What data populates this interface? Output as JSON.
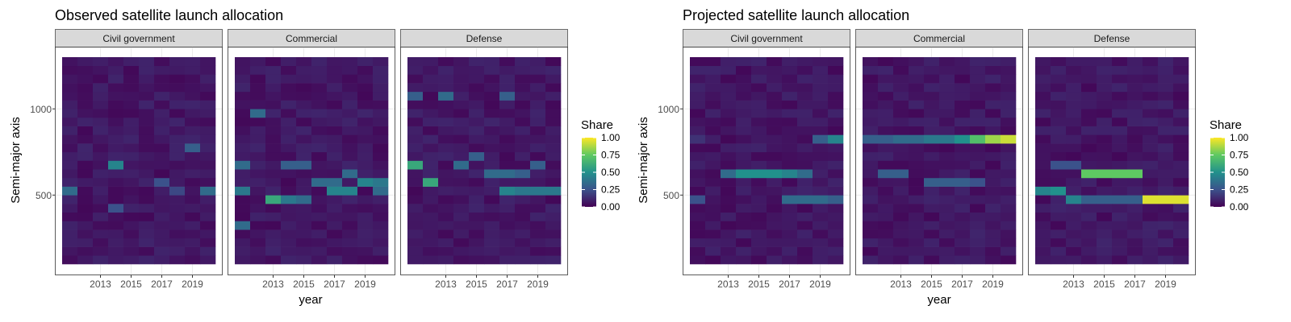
{
  "chart_data": [
    {
      "type": "heatmap",
      "title": "Observed satellite launch allocation",
      "xlabel": "year",
      "ylabel": "Semi-major axis",
      "x_range": [
        2011,
        2020
      ],
      "x_ticks": [
        "2013",
        "2015",
        "2017",
        "2019"
      ],
      "y_range": [
        100,
        1300
      ],
      "y_ticks": [
        "500",
        "1000"
      ],
      "legend": {
        "title": "Share",
        "ticks": [
          "1.00",
          "0.75",
          "0.50",
          "0.25",
          "0.00"
        ],
        "range": [
          0,
          1
        ]
      },
      "facets": [
        {
          "label": "Civil government",
          "highlights": [
            {
              "x": 2011,
              "y": 500,
              "v": 0.35
            },
            {
              "x": 2014,
              "y": 650,
              "v": 0.45
            },
            {
              "x": 2014,
              "y": 400,
              "v": 0.25
            },
            {
              "x": 2019,
              "y": 750,
              "v": 0.3
            },
            {
              "x": 2020,
              "y": 500,
              "v": 0.35
            },
            {
              "x": 2017,
              "y": 550,
              "v": 0.25
            },
            {
              "x": 2018,
              "y": 500,
              "v": 0.22
            }
          ]
        },
        {
          "label": "Commercial",
          "highlights": [
            {
              "x": 2012,
              "y": 950,
              "v": 0.35
            },
            {
              "x": 2011,
              "y": 650,
              "v": 0.35
            },
            {
              "x": 2011,
              "y": 500,
              "v": 0.4
            },
            {
              "x": 2011,
              "y": 300,
              "v": 0.35
            },
            {
              "x": 2013,
              "y": 450,
              "v": 0.6
            },
            {
              "x": 2014,
              "y": 450,
              "v": 0.4
            },
            {
              "x": 2015,
              "y": 450,
              "v": 0.35
            },
            {
              "x": 2014,
              "y": 650,
              "v": 0.3
            },
            {
              "x": 2015,
              "y": 650,
              "v": 0.3
            },
            {
              "x": 2016,
              "y": 550,
              "v": 0.35
            },
            {
              "x": 2017,
              "y": 550,
              "v": 0.35
            },
            {
              "x": 2017,
              "y": 500,
              "v": 0.45
            },
            {
              "x": 2018,
              "y": 500,
              "v": 0.45
            },
            {
              "x": 2018,
              "y": 600,
              "v": 0.35
            },
            {
              "x": 2019,
              "y": 550,
              "v": 0.45
            },
            {
              "x": 2020,
              "y": 550,
              "v": 0.4
            },
            {
              "x": 2020,
              "y": 500,
              "v": 0.35
            }
          ]
        },
        {
          "label": "Defense",
          "highlights": [
            {
              "x": 2011,
              "y": 1050,
              "v": 0.3
            },
            {
              "x": 2013,
              "y": 1050,
              "v": 0.35
            },
            {
              "x": 2017,
              "y": 1050,
              "v": 0.3
            },
            {
              "x": 2011,
              "y": 650,
              "v": 0.6
            },
            {
              "x": 2012,
              "y": 550,
              "v": 0.6
            },
            {
              "x": 2014,
              "y": 650,
              "v": 0.35
            },
            {
              "x": 2015,
              "y": 700,
              "v": 0.3
            },
            {
              "x": 2016,
              "y": 600,
              "v": 0.35
            },
            {
              "x": 2017,
              "y": 600,
              "v": 0.35
            },
            {
              "x": 2017,
              "y": 500,
              "v": 0.45
            },
            {
              "x": 2018,
              "y": 500,
              "v": 0.4
            },
            {
              "x": 2019,
              "y": 500,
              "v": 0.4
            },
            {
              "x": 2020,
              "y": 500,
              "v": 0.4
            },
            {
              "x": 2018,
              "y": 600,
              "v": 0.3
            },
            {
              "x": 2019,
              "y": 650,
              "v": 0.3
            }
          ]
        }
      ]
    },
    {
      "type": "heatmap",
      "title": "Projected satellite launch allocation",
      "xlabel": "year",
      "ylabel": "Semi-major axis",
      "x_range": [
        2011,
        2020
      ],
      "x_ticks": [
        "2013",
        "2015",
        "2017",
        "2019"
      ],
      "y_range": [
        100,
        1300
      ],
      "y_ticks": [
        "500",
        "1000"
      ],
      "legend": {
        "title": "Share",
        "ticks": [
          "1.00",
          "0.75",
          "0.50",
          "0.25",
          "0.00"
        ],
        "range": [
          0,
          1
        ]
      },
      "facets": [
        {
          "label": "Civil government",
          "highlights": [
            {
              "x": 2019,
              "y": 800,
              "v": 0.3
            },
            {
              "x": 2020,
              "y": 800,
              "v": 0.45
            },
            {
              "x": 2013,
              "y": 600,
              "v": 0.35
            },
            {
              "x": 2014,
              "y": 600,
              "v": 0.5
            },
            {
              "x": 2015,
              "y": 600,
              "v": 0.5
            },
            {
              "x": 2016,
              "y": 600,
              "v": 0.5
            },
            {
              "x": 2017,
              "y": 600,
              "v": 0.45
            },
            {
              "x": 2018,
              "y": 600,
              "v": 0.35
            },
            {
              "x": 2017,
              "y": 450,
              "v": 0.35
            },
            {
              "x": 2018,
              "y": 450,
              "v": 0.35
            },
            {
              "x": 2019,
              "y": 450,
              "v": 0.35
            },
            {
              "x": 2020,
              "y": 450,
              "v": 0.3
            },
            {
              "x": 2011,
              "y": 800,
              "v": 0.15
            },
            {
              "x": 2011,
              "y": 450,
              "v": 0.25
            }
          ]
        },
        {
          "label": "Commercial",
          "highlights": [
            {
              "x": 2011,
              "y": 800,
              "v": 0.3
            },
            {
              "x": 2012,
              "y": 800,
              "v": 0.3
            },
            {
              "x": 2013,
              "y": 800,
              "v": 0.35
            },
            {
              "x": 2014,
              "y": 800,
              "v": 0.35
            },
            {
              "x": 2015,
              "y": 800,
              "v": 0.4
            },
            {
              "x": 2016,
              "y": 800,
              "v": 0.4
            },
            {
              "x": 2017,
              "y": 800,
              "v": 0.5
            },
            {
              "x": 2018,
              "y": 800,
              "v": 0.7
            },
            {
              "x": 2019,
              "y": 800,
              "v": 0.85
            },
            {
              "x": 2020,
              "y": 800,
              "v": 0.92
            },
            {
              "x": 2012,
              "y": 600,
              "v": 0.3
            },
            {
              "x": 2013,
              "y": 600,
              "v": 0.3
            },
            {
              "x": 2015,
              "y": 550,
              "v": 0.3
            },
            {
              "x": 2016,
              "y": 550,
              "v": 0.3
            },
            {
              "x": 2017,
              "y": 550,
              "v": 0.3
            },
            {
              "x": 2018,
              "y": 550,
              "v": 0.25
            }
          ]
        },
        {
          "label": "Defense",
          "highlights": [
            {
              "x": 2011,
              "y": 500,
              "v": 0.45
            },
            {
              "x": 2012,
              "y": 500,
              "v": 0.5
            },
            {
              "x": 2013,
              "y": 450,
              "v": 0.45
            },
            {
              "x": 2014,
              "y": 600,
              "v": 0.75
            },
            {
              "x": 2015,
              "y": 600,
              "v": 0.75
            },
            {
              "x": 2016,
              "y": 600,
              "v": 0.75
            },
            {
              "x": 2017,
              "y": 600,
              "v": 0.75
            },
            {
              "x": 2018,
              "y": 450,
              "v": 0.95
            },
            {
              "x": 2019,
              "y": 450,
              "v": 0.95
            },
            {
              "x": 2020,
              "y": 450,
              "v": 0.95
            },
            {
              "x": 2014,
              "y": 450,
              "v": 0.3
            },
            {
              "x": 2015,
              "y": 450,
              "v": 0.3
            },
            {
              "x": 2016,
              "y": 450,
              "v": 0.3
            },
            {
              "x": 2017,
              "y": 450,
              "v": 0.3
            },
            {
              "x": 2012,
              "y": 650,
              "v": 0.25
            },
            {
              "x": 2013,
              "y": 650,
              "v": 0.25
            }
          ]
        }
      ]
    }
  ]
}
